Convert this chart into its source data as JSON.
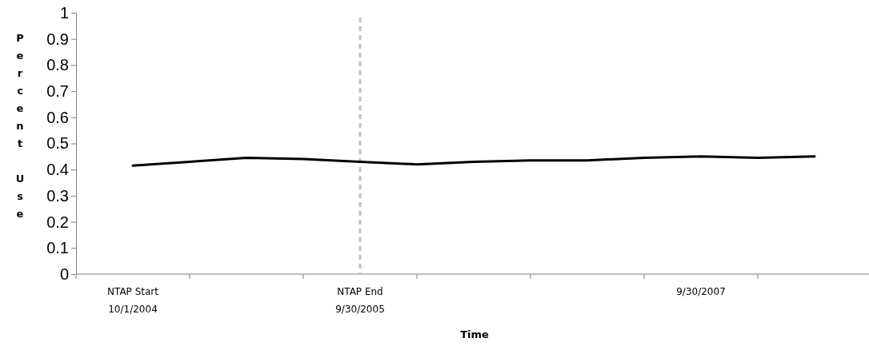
{
  "chart_data": {
    "type": "line",
    "xlabel": "Time",
    "ylabel": "Percent Use",
    "categories": [
      "NTAP Start\n10/1/2004",
      null,
      null,
      null,
      "NTAP End\n9/30/2005",
      null,
      null,
      null,
      null,
      null,
      "9/30/2007",
      null,
      null
    ],
    "series": [
      {
        "color": "#000000",
        "values": [
          0.415,
          0.43,
          0.445,
          0.44,
          0.43,
          0.42,
          0.43,
          0.435,
          0.435,
          0.445,
          0.45,
          0.445,
          0.45
        ]
      }
    ],
    "ylim": [
      0,
      1
    ],
    "yticks": [
      0,
      0.1,
      0.2,
      0.3,
      0.4,
      0.5,
      0.6,
      0.7,
      0.8,
      0.9,
      1
    ],
    "ref_lines": [
      {
        "axis": "x",
        "value": "NTAP End\n9/30/2005",
        "color": "#c0c0c0",
        "line_style": "dashed"
      }
    ],
    "grid": false,
    "marker": "none",
    "line_style": "solid"
  }
}
